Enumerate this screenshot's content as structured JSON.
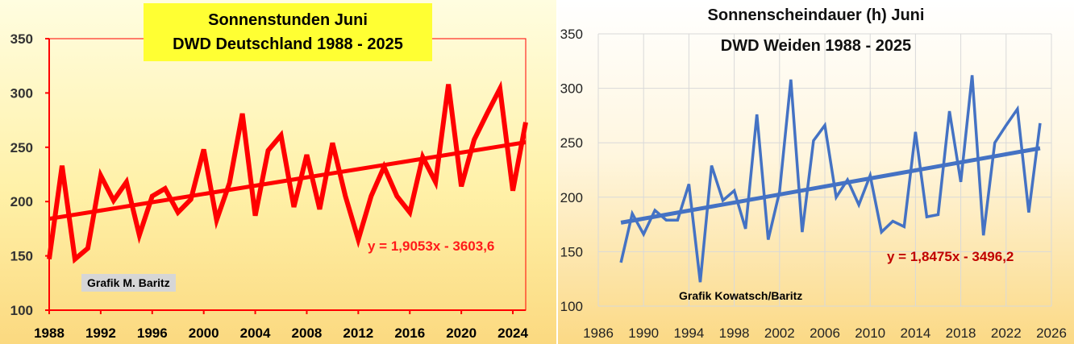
{
  "chart_data": [
    {
      "type": "line",
      "title": "Sonnenstunden Juni",
      "subtitle": "DWD Deutschland 1988 - 2025",
      "xlabel": "",
      "ylabel": "",
      "xlim": [
        1988,
        2025
      ],
      "ylim": [
        100,
        350
      ],
      "x_ticks": [
        1988,
        1992,
        1996,
        2000,
        2004,
        2008,
        2012,
        2016,
        2020,
        2024
      ],
      "y_ticks": [
        100,
        150,
        200,
        250,
        300,
        350
      ],
      "grid": false,
      "credit": "Grafik M. Baritz",
      "trend_label": "y = 1,9053x - 3603,6",
      "trend": {
        "slope": 1.9053,
        "intercept": -3603.6
      },
      "colors": {
        "series": "#ff0000",
        "trend": "#ff0000",
        "axis": "#ff0000"
      },
      "series": [
        {
          "x": [
            1988,
            1989,
            1990,
            1991,
            1992,
            1993,
            1994,
            1995,
            1996,
            1997,
            1998,
            1999,
            2000,
            2001,
            2002,
            2003,
            2004,
            2005,
            2006,
            2007,
            2008,
            2009,
            2010,
            2011,
            2012,
            2013,
            2014,
            2015,
            2016,
            2017,
            2018,
            2019,
            2020,
            2021,
            2022,
            2023,
            2024,
            2025
          ],
          "values": [
            147,
            233,
            147,
            157,
            224,
            201,
            218,
            169,
            205,
            212,
            190,
            202,
            248,
            183,
            217,
            281,
            187,
            247,
            261,
            195,
            243,
            193,
            254,
            205,
            165,
            205,
            232,
            205,
            190,
            241,
            218,
            308,
            214,
            257,
            281,
            304,
            210,
            273
          ]
        }
      ]
    },
    {
      "type": "line",
      "title": "Sonnenscheindauer (h) Juni",
      "subtitle": "DWD Weiden 1988 - 2025",
      "xlabel": "",
      "ylabel": "",
      "xlim": [
        1986,
        2026
      ],
      "ylim": [
        100,
        350
      ],
      "x_ticks": [
        1986,
        1990,
        1994,
        1998,
        2002,
        2006,
        2010,
        2014,
        2018,
        2022,
        2026
      ],
      "y_ticks": [
        100,
        150,
        200,
        250,
        300,
        350
      ],
      "grid": true,
      "credit": "Grafik Kowatsch/Baritz",
      "trend_label": "y = 1,8475x - 3496,2",
      "trend": {
        "slope": 1.8475,
        "intercept": -3496.2
      },
      "colors": {
        "series": "#4472c4",
        "trend": "#4472c4",
        "grid": "#d9d9d9"
      },
      "series": [
        {
          "x": [
            1988,
            1989,
            1990,
            1991,
            1992,
            1993,
            1994,
            1995,
            1996,
            1997,
            1998,
            1999,
            2000,
            2001,
            2002,
            2003,
            2004,
            2005,
            2006,
            2007,
            2008,
            2009,
            2010,
            2011,
            2012,
            2013,
            2014,
            2015,
            2016,
            2017,
            2018,
            2019,
            2020,
            2021,
            2022,
            2023,
            2024,
            2025
          ],
          "values": [
            140,
            185,
            166,
            188,
            179,
            179,
            212,
            122,
            229,
            197,
            206,
            171,
            276,
            161,
            205,
            308,
            168,
            252,
            266,
            200,
            216,
            193,
            220,
            168,
            178,
            173,
            260,
            182,
            184,
            279,
            214,
            312,
            165,
            250,
            266,
            281,
            186,
            268
          ]
        }
      ]
    }
  ]
}
